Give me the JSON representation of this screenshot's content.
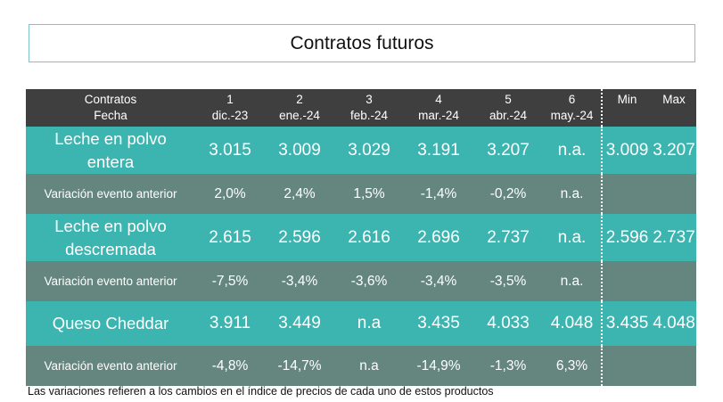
{
  "title": "Contratos futuros",
  "header": {
    "row1_label": "Contratos",
    "row2_label": "Fecha",
    "contracts": [
      {
        "num": "1",
        "date": "dic.-23"
      },
      {
        "num": "2",
        "date": "ene.-24"
      },
      {
        "num": "3",
        "date": "feb.-24"
      },
      {
        "num": "4",
        "date": "mar.-24"
      },
      {
        "num": "5",
        "date": "abr.-24"
      },
      {
        "num": "6",
        "date": "may.-24"
      }
    ],
    "min_label": "Min",
    "max_label": "Max"
  },
  "rows": [
    {
      "name_line1": "Leche en polvo",
      "name_line2": "entera",
      "values": [
        "3.015",
        "3.009",
        "3.029",
        "3.191",
        "3.207",
        "n.a."
      ],
      "min": "3.009",
      "max": "3.207"
    },
    {
      "name": "Variación evento anterior",
      "values": [
        "2,0%",
        "2,4%",
        "1,5%",
        "-1,4%",
        "-0,2%",
        "n.a."
      ]
    },
    {
      "name_line1": "Leche en polvo",
      "name_line2": "descremada",
      "values": [
        "2.615",
        "2.596",
        "2.616",
        "2.696",
        "2.737",
        "n.a."
      ],
      "min": "2.596",
      "max": "2.737"
    },
    {
      "name": "Variación evento anterior",
      "values": [
        "-7,5%",
        "-3,4%",
        "-3,6%",
        "-3,4%",
        "-3,5%",
        "n.a."
      ]
    },
    {
      "name": "Queso Cheddar",
      "values": [
        "3.911",
        "3.449",
        "n.a",
        "3.435",
        "4.033",
        "4.048"
      ],
      "min": "3.435",
      "max": "4.048"
    },
    {
      "name": "Variación evento anterior",
      "values": [
        "-4,8%",
        "-14,7%",
        "n.a",
        "-14,9%",
        "-1,3%",
        "6,3%"
      ]
    }
  ],
  "footnote": "Las variaciones refieren a los cambios en el índice de precios de cada uno de estos productos",
  "colors": {
    "header": "#3f3f3f",
    "product_row": "#3cb4b0",
    "variation_row": "#65867e",
    "title_border": "#7fc3c5"
  }
}
